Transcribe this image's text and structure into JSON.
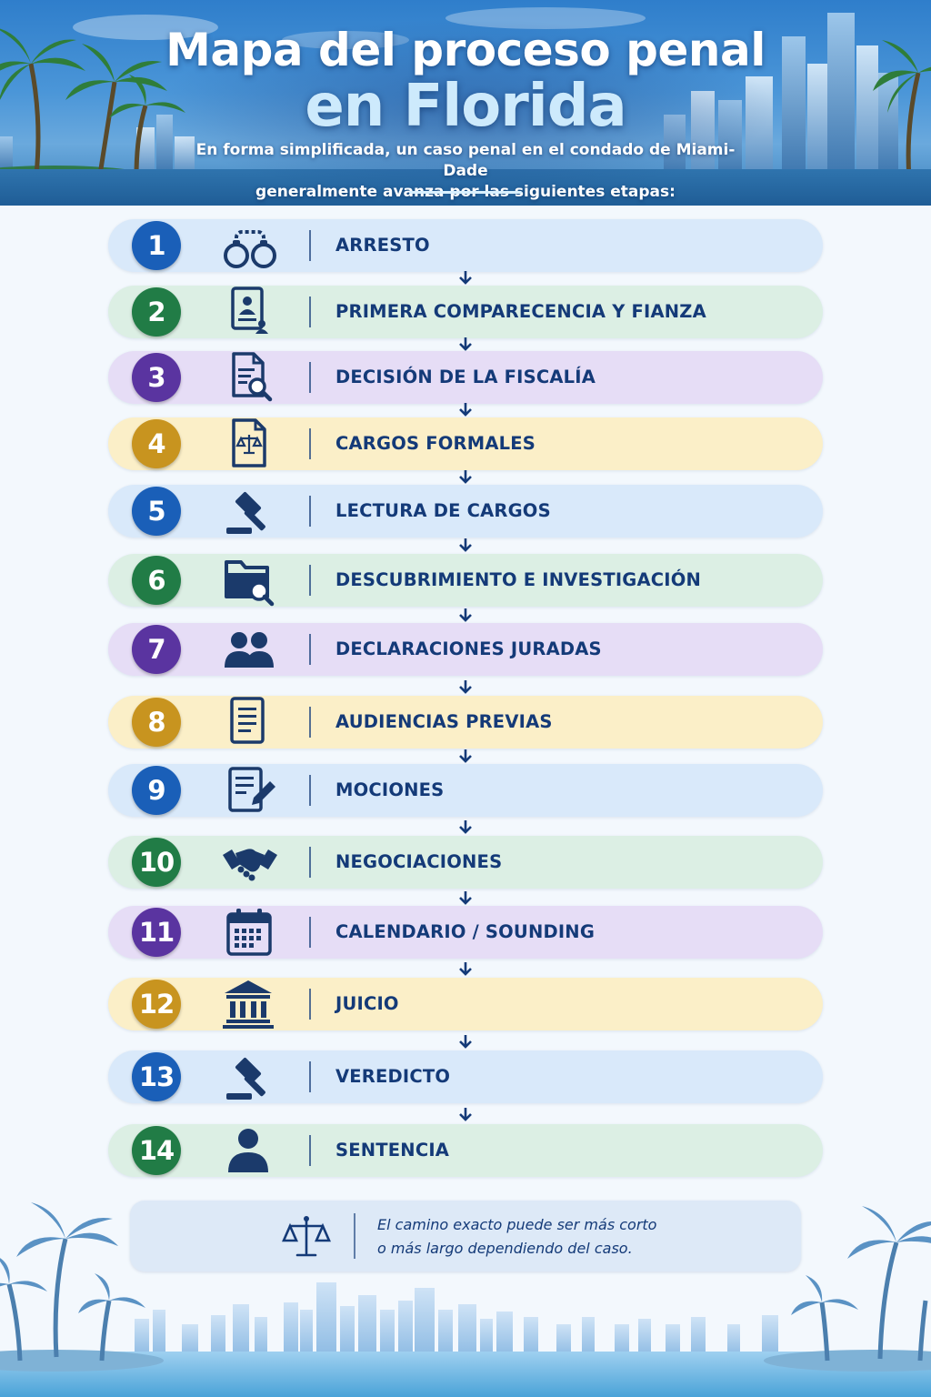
{
  "header": {
    "title_line1": "Mapa del proceso penal",
    "title_line2": "en Florida",
    "subtitle_line1": "En forma simplificada, un caso penal en el condado de Miami-Dade",
    "subtitle_line2": "generalmente avanza por las siguientes etapas:"
  },
  "steps": [
    {
      "number": "1",
      "label": "ARRESTO",
      "icon": "handcuffs-icon",
      "color": "blue"
    },
    {
      "number": "2",
      "label": "PRIMERA COMPARECENCIA Y FIANZA",
      "icon": "id-card-icon",
      "color": "green"
    },
    {
      "number": "3",
      "label": "DECISIÓN DE LA FISCALÍA",
      "icon": "document-search-icon",
      "color": "purple"
    },
    {
      "number": "4",
      "label": "CARGOS FORMALES",
      "icon": "legal-document-icon",
      "color": "yellow"
    },
    {
      "number": "5",
      "label": "LECTURA DE CARGOS",
      "icon": "gavel-icon",
      "color": "blue"
    },
    {
      "number": "6",
      "label": "DESCUBRIMIENTO E INVESTIGACIÓN",
      "icon": "folder-search-icon",
      "color": "green"
    },
    {
      "number": "7",
      "label": "DECLARACIONES JURADAS",
      "icon": "people-icon",
      "color": "purple"
    },
    {
      "number": "8",
      "label": "AUDIENCIAS PREVIAS",
      "icon": "document-icon",
      "color": "yellow"
    },
    {
      "number": "9",
      "label": "MOCIONES",
      "icon": "document-edit-icon",
      "color": "blue"
    },
    {
      "number": "10",
      "label": "NEGOCIACIONES",
      "icon": "handshake-icon",
      "color": "green"
    },
    {
      "number": "11",
      "label": "CALENDARIO / SOUNDING",
      "icon": "calendar-icon",
      "color": "purple"
    },
    {
      "number": "12",
      "label": "JUICIO",
      "icon": "courthouse-icon",
      "color": "yellow"
    },
    {
      "number": "13",
      "label": "VEREDICTO",
      "icon": "gavel-icon",
      "color": "blue"
    },
    {
      "number": "14",
      "label": "SENTENCIA",
      "icon": "person-icon",
      "color": "green"
    }
  ],
  "colors": {
    "blue": {
      "bar": "#d9e9fa",
      "badge": "#1a5fb8"
    },
    "green": {
      "bar": "#dcefe4",
      "badge": "#217c46"
    },
    "purple": {
      "bar": "#e6ddf6",
      "badge": "#5a34a0"
    },
    "yellow": {
      "bar": "#fbefc8",
      "badge": "#c8941f"
    },
    "text": "#143a78",
    "icon": "#1b3a6b"
  },
  "footer_note": {
    "icon": "scales-icon",
    "line1": "El camino exacto puede ser más corto",
    "line2": "o más largo dependiendo del caso."
  }
}
